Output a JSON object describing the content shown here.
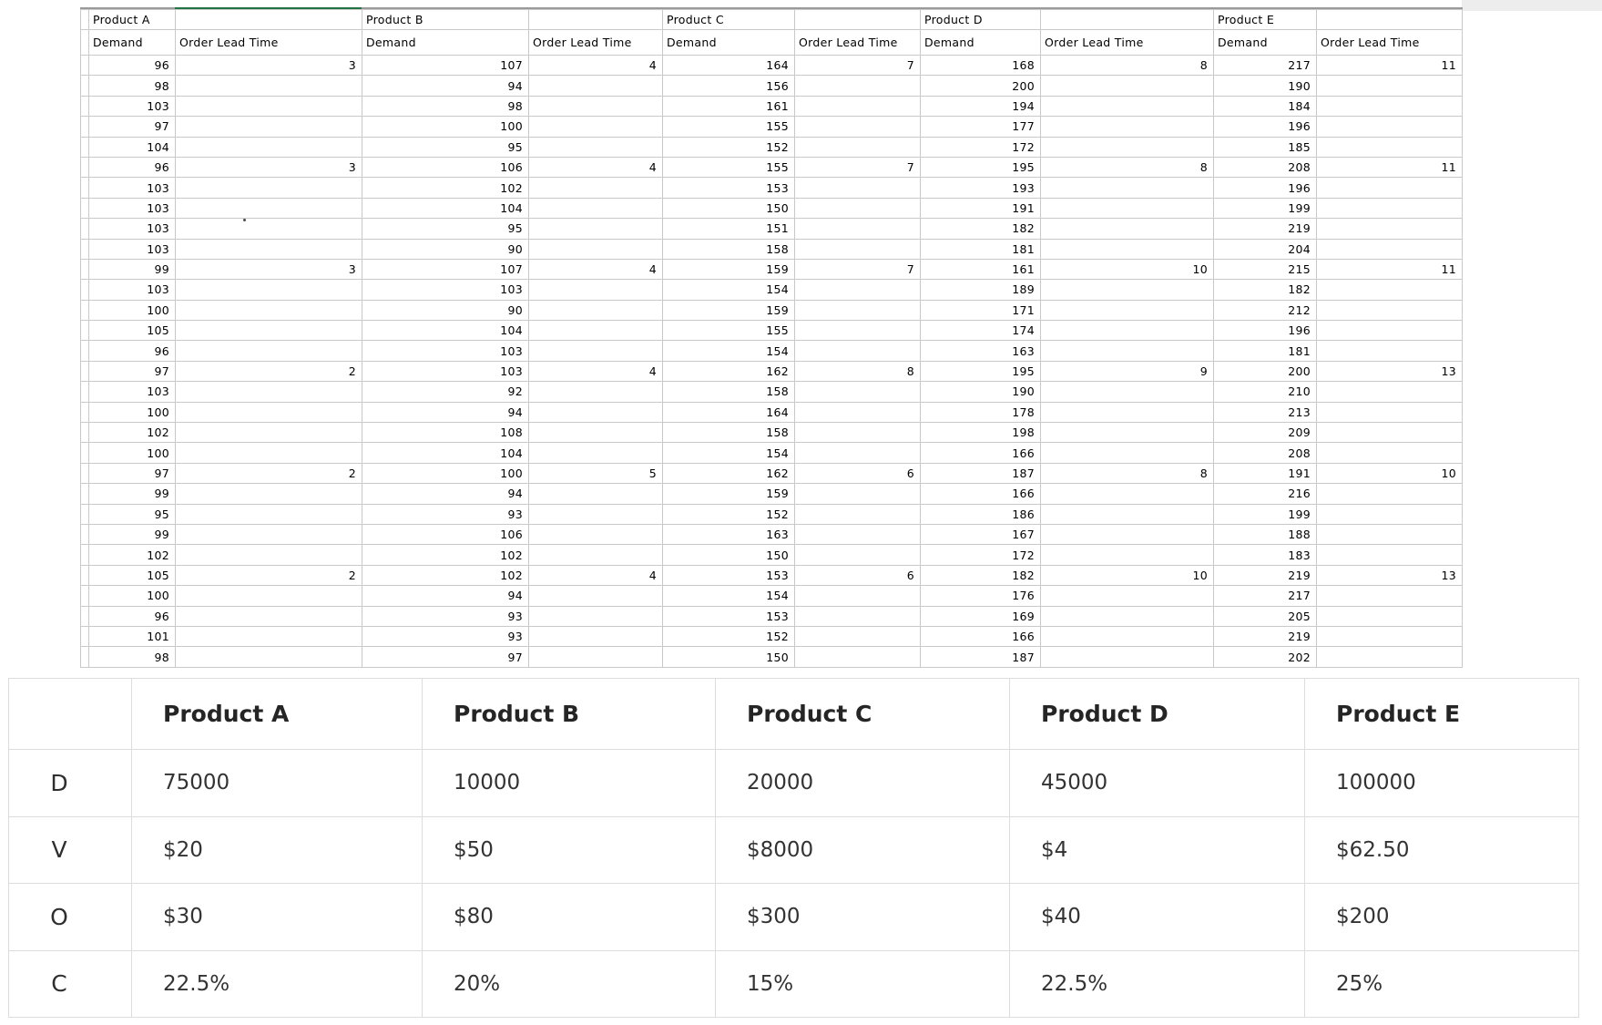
{
  "spreadsheet": {
    "corner": "",
    "products": [
      {
        "name": "Product A",
        "demand_header": "Demand",
        "lead_time_header": "Order Lead Time",
        "demand": [
          96,
          98,
          103,
          97,
          104,
          96,
          103,
          103,
          103,
          103,
          99,
          103,
          100,
          105,
          96,
          97,
          103,
          100,
          102,
          100,
          97,
          99,
          95,
          99,
          102,
          105,
          100,
          96,
          101,
          98
        ],
        "lead_time": [
          "3",
          "",
          "",
          "",
          "",
          "3",
          "",
          "",
          "",
          "",
          "3",
          "",
          "",
          "",
          "",
          "2",
          "",
          "",
          "",
          "",
          "2",
          "",
          "",
          "",
          "",
          "2",
          "",
          "",
          "",
          ""
        ]
      },
      {
        "name": "Product B",
        "demand_header": "Demand",
        "lead_time_header": "Order Lead Time",
        "demand": [
          107,
          94,
          98,
          100,
          95,
          106,
          102,
          104,
          95,
          90,
          107,
          103,
          90,
          104,
          103,
          103,
          92,
          94,
          108,
          104,
          100,
          94,
          93,
          106,
          102,
          102,
          94,
          93,
          93,
          97
        ],
        "lead_time": [
          "4",
          "",
          "",
          "",
          "",
          "4",
          "",
          "",
          "",
          "",
          "4",
          "",
          "",
          "",
          "",
          "4",
          "",
          "",
          "",
          "",
          "5",
          "",
          "",
          "",
          "",
          "4",
          "",
          "",
          "",
          ""
        ]
      },
      {
        "name": "Product C",
        "demand_header": "Demand",
        "lead_time_header": "Order Lead Time",
        "demand": [
          164,
          156,
          161,
          155,
          152,
          155,
          153,
          150,
          151,
          158,
          159,
          154,
          159,
          155,
          154,
          162,
          158,
          164,
          158,
          154,
          162,
          159,
          152,
          163,
          150,
          153,
          154,
          153,
          152,
          150
        ],
        "lead_time": [
          "7",
          "",
          "",
          "",
          "",
          "7",
          "",
          "",
          "",
          "",
          "7",
          "",
          "",
          "",
          "",
          "8",
          "",
          "",
          "",
          "",
          "6",
          "",
          "",
          "",
          "",
          "6",
          "",
          "",
          "",
          ""
        ]
      },
      {
        "name": "Product D",
        "demand_header": "Demand",
        "lead_time_header": "Order Lead Time",
        "demand": [
          168,
          200,
          194,
          177,
          172,
          195,
          193,
          191,
          182,
          181,
          161,
          189,
          171,
          174,
          163,
          195,
          190,
          178,
          198,
          166,
          187,
          166,
          186,
          167,
          172,
          182,
          176,
          169,
          166,
          187
        ],
        "lead_time": [
          "8",
          "",
          "",
          "",
          "",
          "8",
          "",
          "",
          "",
          "",
          "10",
          "",
          "",
          "",
          "",
          "9",
          "",
          "",
          "",
          "",
          "8",
          "",
          "",
          "",
          "",
          "10",
          "",
          "",
          "",
          ""
        ]
      },
      {
        "name": "Product E",
        "demand_header": "Demand",
        "lead_time_header": "Order Lead Time",
        "demand": [
          217,
          190,
          184,
          196,
          185,
          208,
          196,
          199,
          219,
          204,
          215,
          182,
          212,
          196,
          181,
          200,
          210,
          213,
          209,
          208,
          191,
          216,
          199,
          188,
          183,
          219,
          217,
          205,
          219,
          202
        ],
        "lead_time": [
          "11",
          "",
          "",
          "",
          "",
          "11",
          "",
          "",
          "",
          "",
          "11",
          "",
          "",
          "",
          "",
          "13",
          "",
          "",
          "",
          "",
          "10",
          "",
          "",
          "",
          "",
          "13",
          "",
          "",
          "",
          ""
        ]
      }
    ]
  },
  "summary": {
    "corner_label": "",
    "columns": [
      "Product A",
      "Product B",
      "Product C",
      "Product D",
      "Product E"
    ],
    "rows": [
      {
        "label": "D",
        "values": [
          "75000",
          "10000",
          "20000",
          "45000",
          "100000"
        ]
      },
      {
        "label": "V",
        "values": [
          "$20",
          "$50",
          "$8000",
          "$4",
          "$62.50"
        ]
      },
      {
        "label": "O",
        "values": [
          "$30",
          "$80",
          "$300",
          "$40",
          "$200"
        ]
      },
      {
        "label": "C",
        "values": [
          "22.5%",
          "20%",
          "15%",
          "22.5%",
          "25%"
        ]
      }
    ]
  },
  "colors": {
    "selection_green": "#217346",
    "grid_line": "#c9c9c9",
    "summary_line": "#dcdcdc",
    "summary_text": "#333333"
  }
}
